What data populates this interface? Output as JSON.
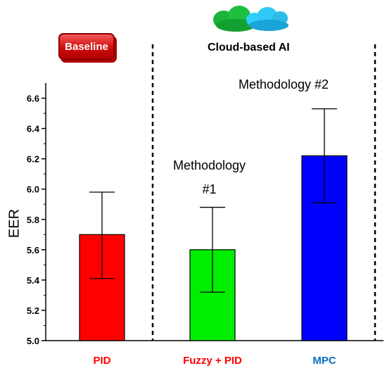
{
  "baseline_label": "Baseline",
  "cloud_label": "Cloud-based AI",
  "annotations": {
    "methodology1_line1": "Methodology",
    "methodology1_line2": "#1",
    "methodology2": "Methodology #2"
  },
  "cloud_icon": "cloud-icon",
  "chart_data": {
    "type": "bar",
    "categories": [
      "PID",
      "Fuzzy + PID",
      "MPC"
    ],
    "category_colors": [
      "#ff0000",
      "#ff0000",
      "#0070c0"
    ],
    "bar_colors": [
      "#ff0000",
      "#00ee00",
      "#0000ff"
    ],
    "values": [
      5.7,
      5.6,
      6.22
    ],
    "error_low": [
      5.41,
      5.32,
      5.91
    ],
    "error_high": [
      5.98,
      5.88,
      6.53
    ],
    "ylabel": "EER",
    "xlabel": "",
    "ylim": [
      5.0,
      6.7
    ],
    "yticks": [
      "5.0",
      "5.2",
      "5.4",
      "5.6",
      "5.8",
      "6.0",
      "6.2",
      "6.4",
      "6.6"
    ],
    "grid": false
  }
}
